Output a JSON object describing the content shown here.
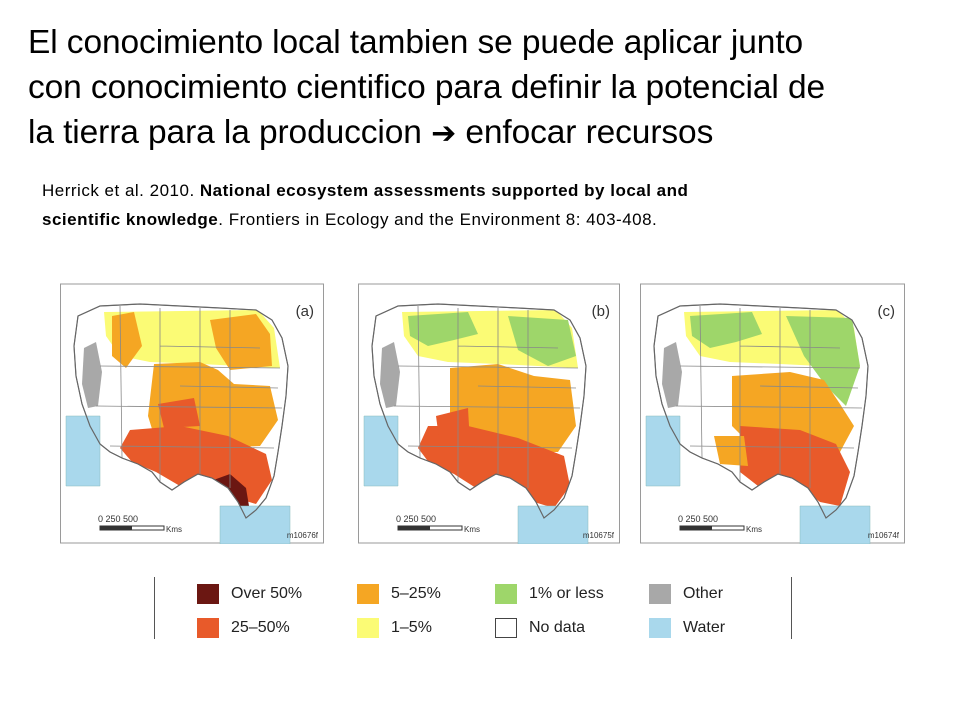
{
  "slide": {
    "title_line1": "El conocimiento local tambien se puede aplicar junto",
    "title_line2": "con conocimiento cientifico para definir la potencial de",
    "title_line3_start": "la tierra para la produccion",
    "title_arrow": "➔",
    "title_line3_end": "enfocar recursos",
    "citation": {
      "authors": "Herrick et al. 2010. ",
      "article_title": "National ecosystem assessments supported by local and scientific knowledge",
      "after_title": ". Frontiers in Ecology and the Environment  8: 403-408."
    }
  },
  "maps": [
    {
      "panel_label": "(a)",
      "scale_text": "0   250  500",
      "scale_unit": "Kms",
      "figure_code": "m10676f"
    },
    {
      "panel_label": "(b)",
      "scale_text": "0   250  500",
      "scale_unit": "Kms",
      "figure_code": "m10675f"
    },
    {
      "panel_label": "(c)",
      "scale_text": "0   250  500",
      "scale_unit": "Kms",
      "figure_code": "m10674f"
    }
  ],
  "legend": {
    "items": [
      {
        "label": "Over 50%",
        "color": "#6b1712"
      },
      {
        "label": "25–50%",
        "color": "#e85a2a"
      },
      {
        "label": "5–25%",
        "color": "#f5a623"
      },
      {
        "label": "1–5%",
        "color": "#fbfb75"
      },
      {
        "label": "1% or less",
        "color": "#9ed66a"
      },
      {
        "label": "No data",
        "color": "#ffffff"
      },
      {
        "label": "Other",
        "color": "#a8a8a8"
      },
      {
        "label": "Water",
        "color": "#a9d8ec"
      }
    ]
  }
}
